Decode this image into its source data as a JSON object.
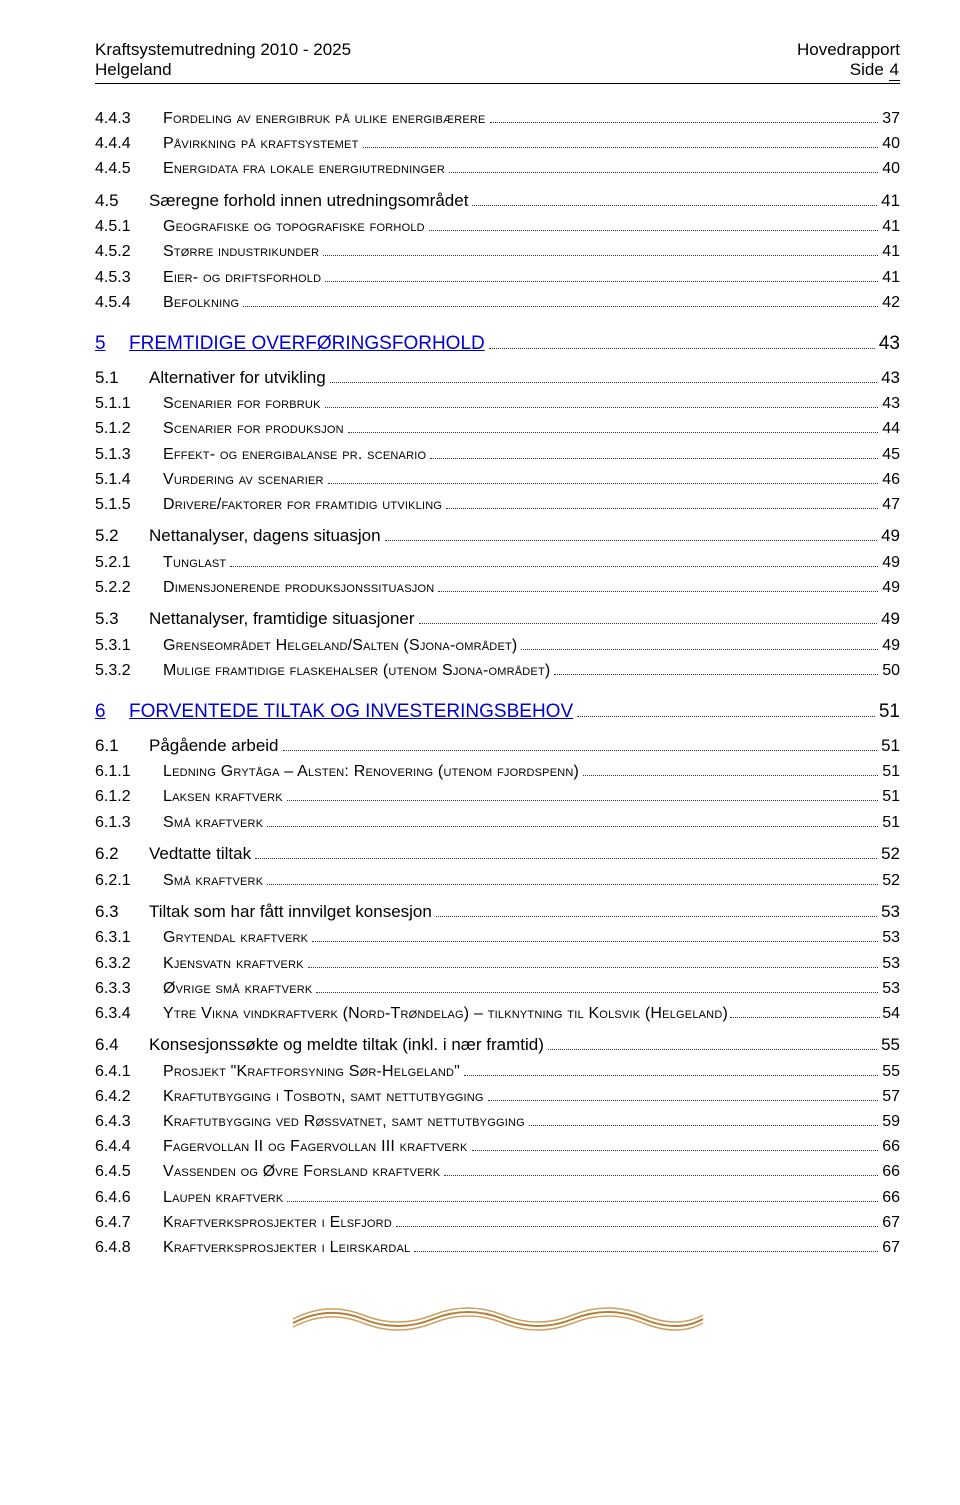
{
  "header": {
    "top_left": "Kraftsystemutredning 2010 - 2025",
    "bottom_left": "Helgeland",
    "top_right": "Hovedrapport",
    "side_label": "Side",
    "page_number": "4"
  },
  "toc": [
    {
      "lvl": 3,
      "num": "4.4.3",
      "label": "Fordeling av energibruk på ulike energibærere",
      "page": "37"
    },
    {
      "lvl": 3,
      "num": "4.4.4",
      "label": "Påvirkning på kraftsystemet",
      "page": "40"
    },
    {
      "lvl": 3,
      "num": "4.4.5",
      "label": "Energidata fra lokale energiutredninger",
      "page": "40"
    },
    {
      "lvl": 2,
      "num": "4.5",
      "label": "Særegne forhold innen utredningsområdet",
      "page": "41"
    },
    {
      "lvl": 3,
      "num": "4.5.1",
      "label": "Geografiske og topografiske forhold",
      "page": "41"
    },
    {
      "lvl": 3,
      "num": "4.5.2",
      "label": "Større industrikunder",
      "page": "41"
    },
    {
      "lvl": 3,
      "num": "4.5.3",
      "label": "Eier- og driftsforhold",
      "page": "41"
    },
    {
      "lvl": 3,
      "num": "4.5.4",
      "label": "Befolkning",
      "page": "42"
    },
    {
      "lvl": 1,
      "num": "5",
      "label": "FREMTIDIGE OVERFØRINGSFORHOLD",
      "page": "43",
      "link": true
    },
    {
      "lvl": 2,
      "num": "5.1",
      "label": "Alternativer for utvikling",
      "page": "43"
    },
    {
      "lvl": 3,
      "num": "5.1.1",
      "label": "Scenarier for forbruk",
      "page": "43"
    },
    {
      "lvl": 3,
      "num": "5.1.2",
      "label": "Scenarier for produksjon",
      "page": "44"
    },
    {
      "lvl": 3,
      "num": "5.1.3",
      "label": "Effekt- og energibalanse pr. scenario",
      "page": "45"
    },
    {
      "lvl": 3,
      "num": "5.1.4",
      "label": "Vurdering av scenarier",
      "page": "46"
    },
    {
      "lvl": 3,
      "num": "5.1.5",
      "label": "Drivere/faktorer for framtidig utvikling",
      "page": "47"
    },
    {
      "lvl": 2,
      "num": "5.2",
      "label": "Nettanalyser, dagens situasjon",
      "page": "49"
    },
    {
      "lvl": 3,
      "num": "5.2.1",
      "label": "Tunglast",
      "page": "49"
    },
    {
      "lvl": 3,
      "num": "5.2.2",
      "label": "Dimensjonerende produksjonssituasjon",
      "page": "49"
    },
    {
      "lvl": 2,
      "num": "5.3",
      "label": "Nettanalyser, framtidige situasjoner",
      "page": "49"
    },
    {
      "lvl": 3,
      "num": "5.3.1",
      "label": "Grenseområdet Helgeland/Salten (Sjona-området)",
      "page": "49"
    },
    {
      "lvl": 3,
      "num": "5.3.2",
      "label": "Mulige framtidige flaskehalser (utenom Sjona-området)",
      "page": "50"
    },
    {
      "lvl": 1,
      "num": "6",
      "label": "FORVENTEDE TILTAK OG INVESTERINGSBEHOV",
      "page": "51",
      "link": true
    },
    {
      "lvl": 2,
      "num": "6.1",
      "label": "Pågående arbeid",
      "page": "51"
    },
    {
      "lvl": 3,
      "num": "6.1.1",
      "label": "Ledning Grytåga – Alsten: Renovering (utenom fjordspenn)",
      "page": "51"
    },
    {
      "lvl": 3,
      "num": "6.1.2",
      "label": "Laksen kraftverk",
      "page": "51"
    },
    {
      "lvl": 3,
      "num": "6.1.3",
      "label": "Små kraftverk",
      "page": "51"
    },
    {
      "lvl": 2,
      "num": "6.2",
      "label": "Vedtatte tiltak",
      "page": "52"
    },
    {
      "lvl": 3,
      "num": "6.2.1",
      "label": "Små kraftverk",
      "page": "52"
    },
    {
      "lvl": 2,
      "num": "6.3",
      "label": "Tiltak som har fått innvilget konsesjon",
      "page": "53"
    },
    {
      "lvl": 3,
      "num": "6.3.1",
      "label": "Grytendal kraftverk",
      "page": "53"
    },
    {
      "lvl": 3,
      "num": "6.3.2",
      "label": "Kjensvatn kraftverk",
      "page": "53"
    },
    {
      "lvl": 3,
      "num": "6.3.3",
      "label": "Øvrige små kraftverk",
      "page": "53"
    },
    {
      "lvl": 3,
      "num": "6.3.4",
      "label": "Ytre Vikna vindkraftverk (Nord-Trøndelag) – tilknytning til Kolsvik (Helgeland)",
      "page": "54",
      "tight": true
    },
    {
      "lvl": 2,
      "num": "6.4",
      "label": "Konsesjonssøkte og meldte tiltak (inkl. i nær framtid)",
      "page": "55"
    },
    {
      "lvl": 3,
      "num": "6.4.1",
      "label": "Prosjekt \"Kraftforsyning Sør-Helgeland\"",
      "page": "55"
    },
    {
      "lvl": 3,
      "num": "6.4.2",
      "label": "Kraftutbygging i Tosbotn, samt nettutbygging",
      "page": "57"
    },
    {
      "lvl": 3,
      "num": "6.4.3",
      "label": "Kraftutbygging ved Røssvatnet, samt nettutbygging",
      "page": "59"
    },
    {
      "lvl": 3,
      "num": "6.4.4",
      "label": "Fagervollan II og Fagervollan III kraftverk",
      "page": "66"
    },
    {
      "lvl": 3,
      "num": "6.4.5",
      "label": "Vassenden og Øvre Forsland kraftverk",
      "page": "66"
    },
    {
      "lvl": 3,
      "num": "6.4.6",
      "label": "Laupen kraftverk",
      "page": "66"
    },
    {
      "lvl": 3,
      "num": "6.4.7",
      "label": "Kraftverksprosjekter i Elsfjord",
      "page": "67"
    },
    {
      "lvl": 3,
      "num": "6.4.8",
      "label": "Kraftverksprosjekter i Leirskardal",
      "page": "67"
    }
  ],
  "colors": {
    "link": "#0000d0",
    "text": "#000000",
    "leader": "#333333",
    "wave": "#b57f3a"
  }
}
